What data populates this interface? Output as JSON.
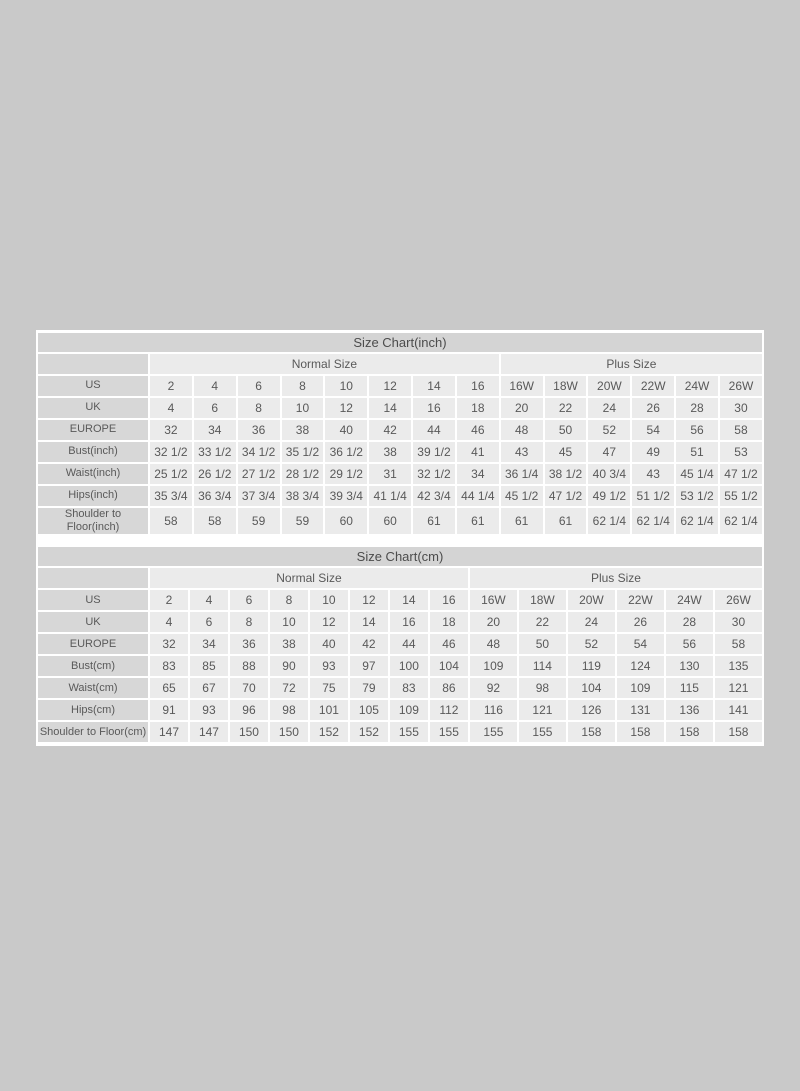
{
  "colors": {
    "page_background": "#c9c9c9",
    "table_background": "#ffffff",
    "title_cell": "#d4d4d4",
    "label_cell": "#d7d7d7",
    "data_cell": "#ebebeb",
    "text": "#595959"
  },
  "chart_data": [
    {
      "type": "table",
      "title": "Size Chart(inch)",
      "group_headers": {
        "normal": {
          "label": "Normal Size",
          "span": 8
        },
        "plus": {
          "label": "Plus Size",
          "span": 6
        }
      },
      "rows": [
        {
          "label": "US",
          "values": [
            "2",
            "4",
            "6",
            "8",
            "10",
            "12",
            "14",
            "16",
            "16W",
            "18W",
            "20W",
            "22W",
            "24W",
            "26W"
          ]
        },
        {
          "label": "UK",
          "values": [
            "4",
            "6",
            "8",
            "10",
            "12",
            "14",
            "16",
            "18",
            "20",
            "22",
            "24",
            "26",
            "28",
            "30"
          ]
        },
        {
          "label": "EUROPE",
          "values": [
            "32",
            "34",
            "36",
            "38",
            "40",
            "42",
            "44",
            "46",
            "48",
            "50",
            "52",
            "54",
            "56",
            "58"
          ]
        },
        {
          "label": "Bust(inch)",
          "values": [
            "32 1/2",
            "33 1/2",
            "34 1/2",
            "35 1/2",
            "36 1/2",
            "38",
            "39 1/2",
            "41",
            "43",
            "45",
            "47",
            "49",
            "51",
            "53"
          ]
        },
        {
          "label": "Waist(inch)",
          "values": [
            "25 1/2",
            "26 1/2",
            "27 1/2",
            "28 1/2",
            "29 1/2",
            "31",
            "32 1/2",
            "34",
            "36 1/4",
            "38 1/2",
            "40 3/4",
            "43",
            "45 1/4",
            "47 1/2"
          ]
        },
        {
          "label": "Hips(inch)",
          "values": [
            "35 3/4",
            "36 3/4",
            "37 3/4",
            "38 3/4",
            "39 3/4",
            "41 1/4",
            "42 3/4",
            "44 1/4",
            "45 1/2",
            "47 1/2",
            "49 1/2",
            "51 1/2",
            "53 1/2",
            "55 1/2"
          ]
        },
        {
          "label": "Shoulder to Floor(inch)",
          "values": [
            "58",
            "58",
            "59",
            "59",
            "60",
            "60",
            "61",
            "61",
            "61",
            "61",
            "62 1/4",
            "62 1/4",
            "62 1/4",
            "62 1/4"
          ]
        }
      ]
    },
    {
      "type": "table",
      "title": "Size Chart(cm)",
      "group_headers": {
        "normal": {
          "label": "Normal Size",
          "span": 8
        },
        "plus": {
          "label": "Plus Size",
          "span": 6
        }
      },
      "rows": [
        {
          "label": "US",
          "values": [
            "2",
            "4",
            "6",
            "8",
            "10",
            "12",
            "14",
            "16",
            "16W",
            "18W",
            "20W",
            "22W",
            "24W",
            "26W"
          ]
        },
        {
          "label": "UK",
          "values": [
            "4",
            "6",
            "8",
            "10",
            "12",
            "14",
            "16",
            "18",
            "20",
            "22",
            "24",
            "26",
            "28",
            "30"
          ]
        },
        {
          "label": "EUROPE",
          "values": [
            "32",
            "34",
            "36",
            "38",
            "40",
            "42",
            "44",
            "46",
            "48",
            "50",
            "52",
            "54",
            "56",
            "58"
          ]
        },
        {
          "label": "Bust(cm)",
          "values": [
            "83",
            "85",
            "88",
            "90",
            "93",
            "97",
            "100",
            "104",
            "109",
            "114",
            "119",
            "124",
            "130",
            "135"
          ]
        },
        {
          "label": "Waist(cm)",
          "values": [
            "65",
            "67",
            "70",
            "72",
            "75",
            "79",
            "83",
            "86",
            "92",
            "98",
            "104",
            "109",
            "115",
            "121"
          ]
        },
        {
          "label": "Hips(cm)",
          "values": [
            "91",
            "93",
            "96",
            "98",
            "101",
            "105",
            "109",
            "112",
            "116",
            "121",
            "126",
            "131",
            "136",
            "141"
          ]
        },
        {
          "label": "Shoulder to Floor(cm)",
          "values": [
            "147",
            "147",
            "150",
            "150",
            "152",
            "152",
            "155",
            "155",
            "155",
            "155",
            "158",
            "158",
            "158",
            "158"
          ]
        }
      ]
    }
  ]
}
